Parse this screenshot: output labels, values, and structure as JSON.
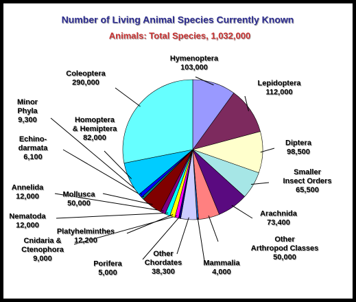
{
  "chart_data": {
    "type": "pie",
    "title": "Number of Living Animal Species Currently Known",
    "subtitle": "Animals: Total Species, 1,032,000",
    "categories": [
      "Hymenoptera",
      "Lepidoptera",
      "Diptera",
      "Smaller\nInsect Orders",
      "Arachnida",
      "Other\nArthropod Classes",
      "Mammalia",
      "Other\nChordates",
      "Porifera",
      "Cnidaria &\nCtenophora",
      "Platyhelminthes",
      "Nematoda",
      "Annelida",
      "Mollusca",
      "Echino-\ndarmata",
      "Minor\nPhyla",
      "Homoptera\n& Hemiptera",
      "Coleoptera"
    ],
    "values": [
      103000,
      112000,
      98500,
      65500,
      73400,
      50000,
      4000,
      38300,
      5000,
      9000,
      12200,
      12000,
      12000,
      50000,
      6100,
      9300,
      82000,
      290000
    ],
    "value_labels": [
      "103,000",
      "112,000",
      "98,500",
      "65,500",
      "73,400",
      "50,000",
      "4,000",
      "38,300",
      "5,000",
      "9,000",
      "12,200",
      "12,000",
      "12,000",
      "50,000",
      "6,100",
      "9,300",
      "82,000",
      "290,000"
    ],
    "colors": [
      "#9999ff",
      "#7d2a5e",
      "#ffffcc",
      "#a6e6e6",
      "#5a0a80",
      "#ff8080",
      "#1a66cc",
      "#ccccff",
      "#000080",
      "#ff00ff",
      "#ffff00",
      "#00ffff",
      "#800080",
      "#800000",
      "#008080",
      "#0000ff",
      "#00ccff",
      "#66ffff"
    ]
  }
}
